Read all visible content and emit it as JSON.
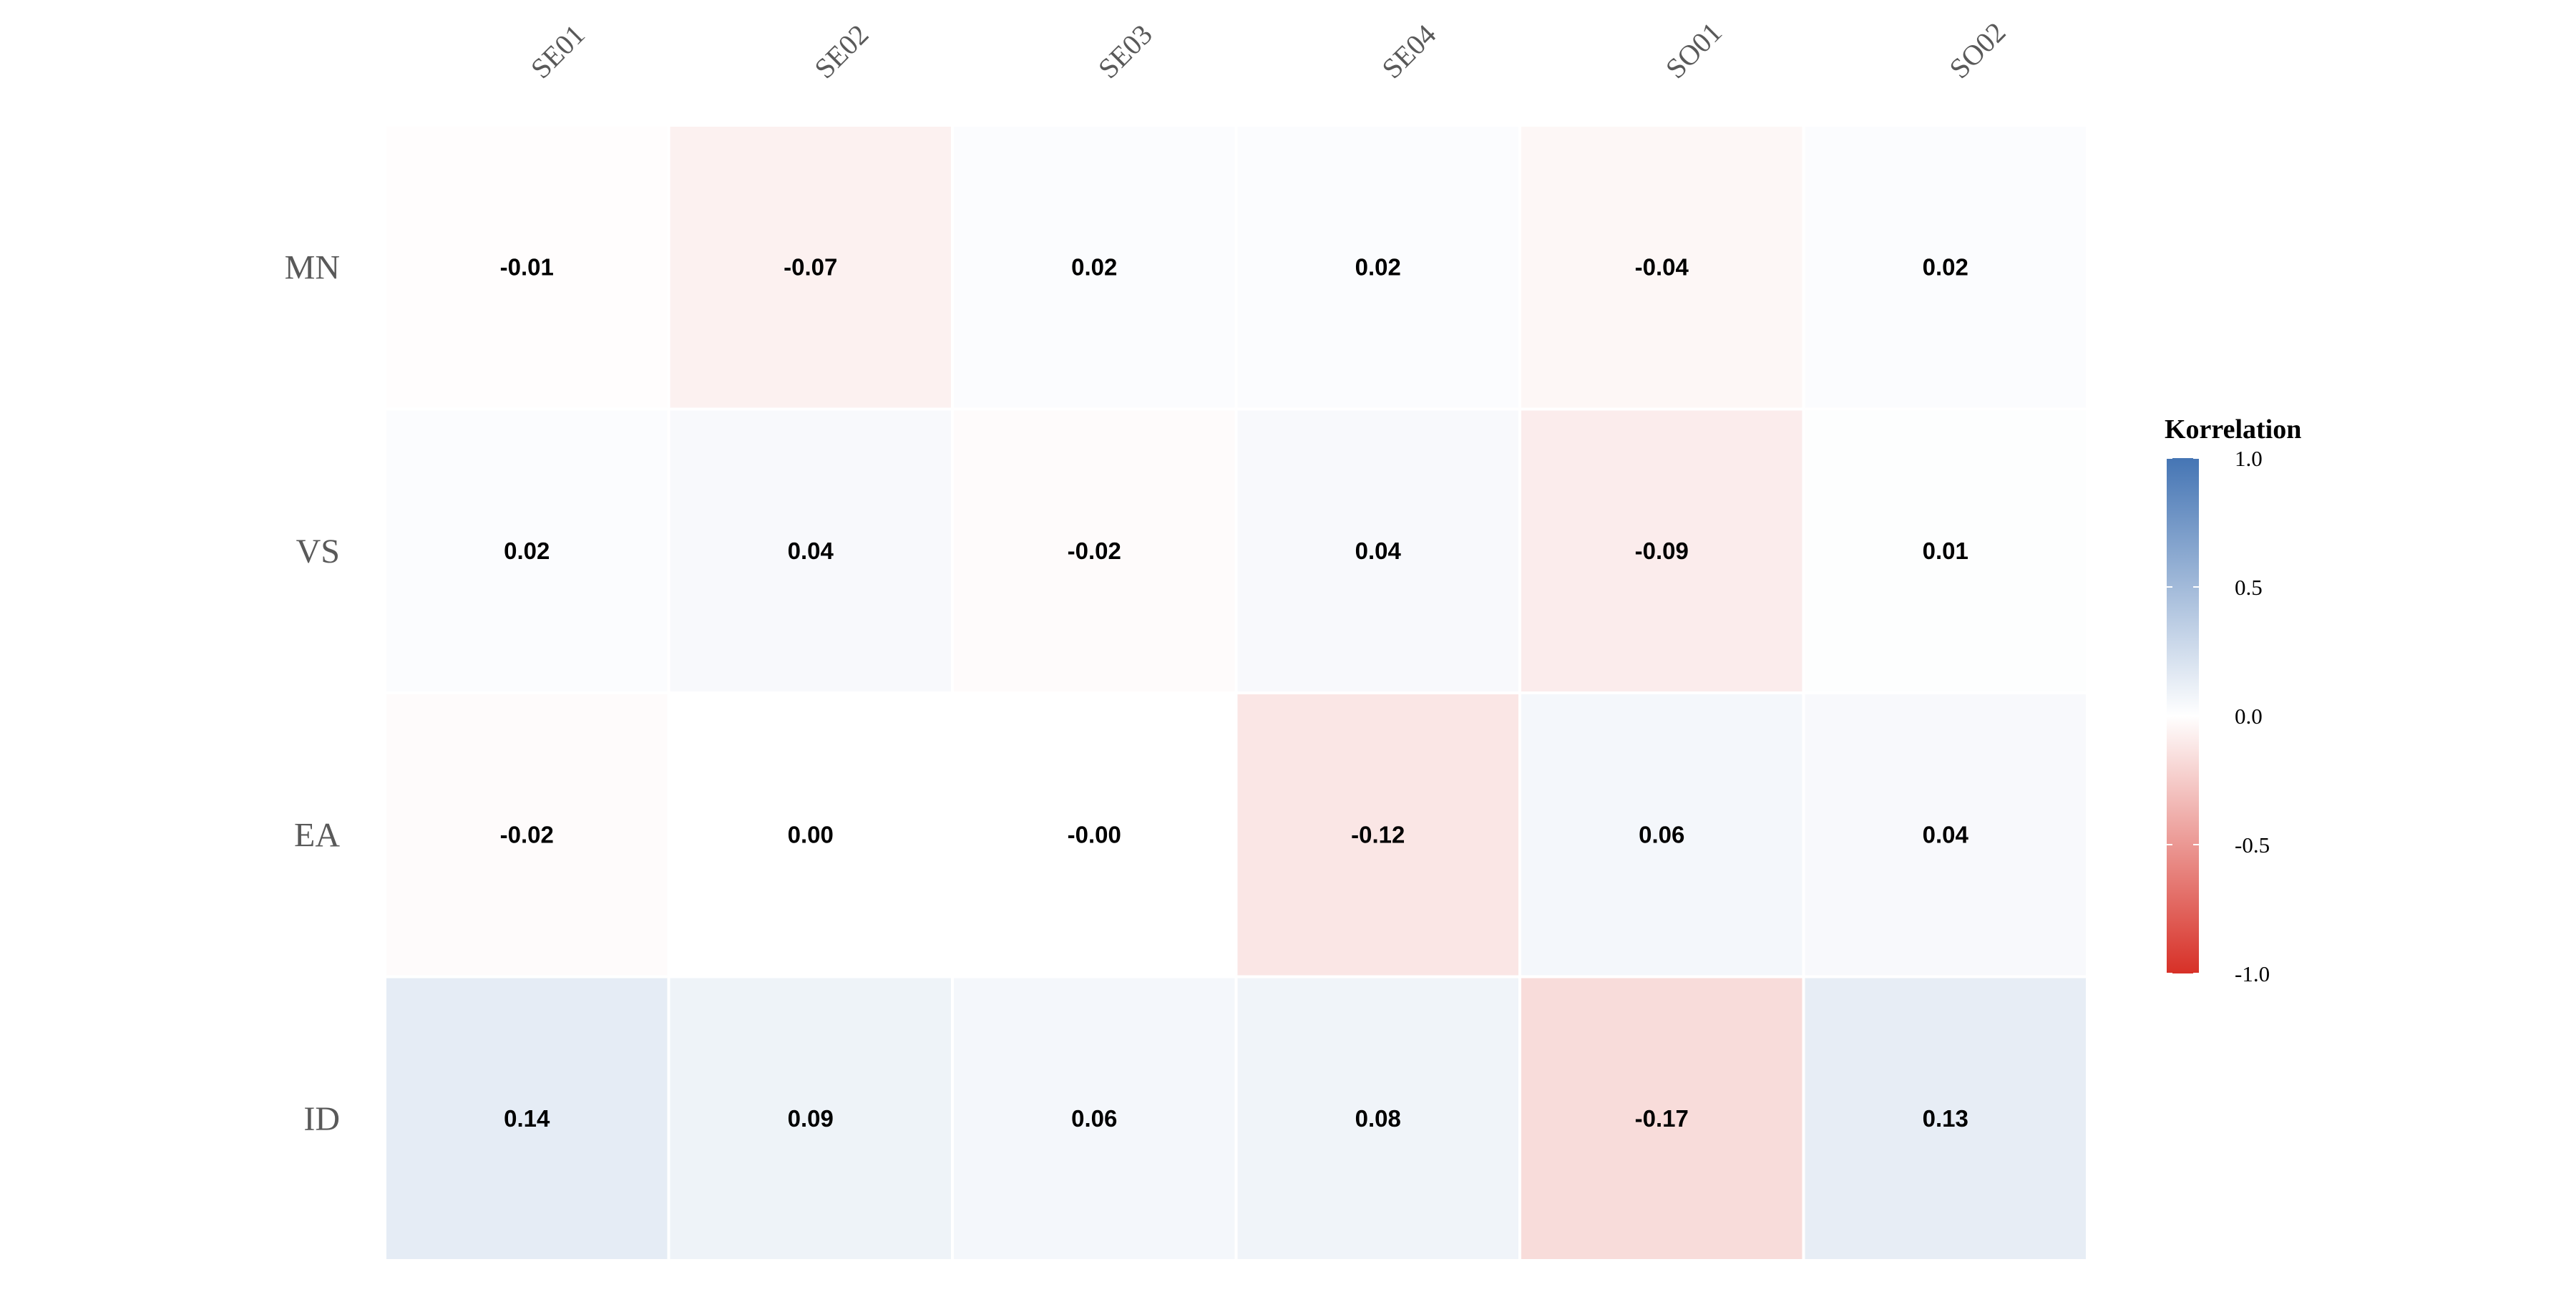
{
  "chart_data": {
    "type": "heatmap",
    "x_categories": [
      "SE01",
      "SE02",
      "SE03",
      "SE04",
      "SO01",
      "SO02"
    ],
    "y_categories": [
      "MN",
      "VS",
      "EA",
      "ID"
    ],
    "values": [
      [
        -0.01,
        -0.07,
        0.02,
        0.02,
        -0.04,
        0.02
      ],
      [
        0.02,
        0.04,
        -0.02,
        0.04,
        -0.09,
        0.01
      ],
      [
        -0.02,
        0.001,
        -0.001,
        -0.12,
        0.06,
        0.04
      ],
      [
        0.14,
        0.09,
        0.06,
        0.08,
        -0.17,
        0.13
      ]
    ],
    "labels": [
      [
        "-0.01",
        "-0.07",
        "0.02",
        "0.02",
        "-0.04",
        "0.02"
      ],
      [
        "0.02",
        "0.04",
        "-0.02",
        "0.04",
        "-0.09",
        "0.01"
      ],
      [
        "-0.02",
        "0.00",
        "-0.00",
        "-0.12",
        "0.06",
        "0.04"
      ],
      [
        "0.14",
        "0.09",
        "0.06",
        "0.08",
        "-0.17",
        "0.13"
      ]
    ],
    "legend": {
      "title": "Korrelation",
      "range": [
        -1.0,
        1.0
      ],
      "ticks": [
        1.0,
        0.5,
        0.0,
        -0.5,
        -1.0
      ],
      "tick_labels": [
        "1.0",
        "0.5",
        "0.0",
        "-0.5",
        "-1.0"
      ],
      "placement": "right"
    },
    "colors": {
      "low": "#D73027",
      "mid": "#FFFFFF",
      "high": "#4575B4"
    },
    "grid": false
  }
}
